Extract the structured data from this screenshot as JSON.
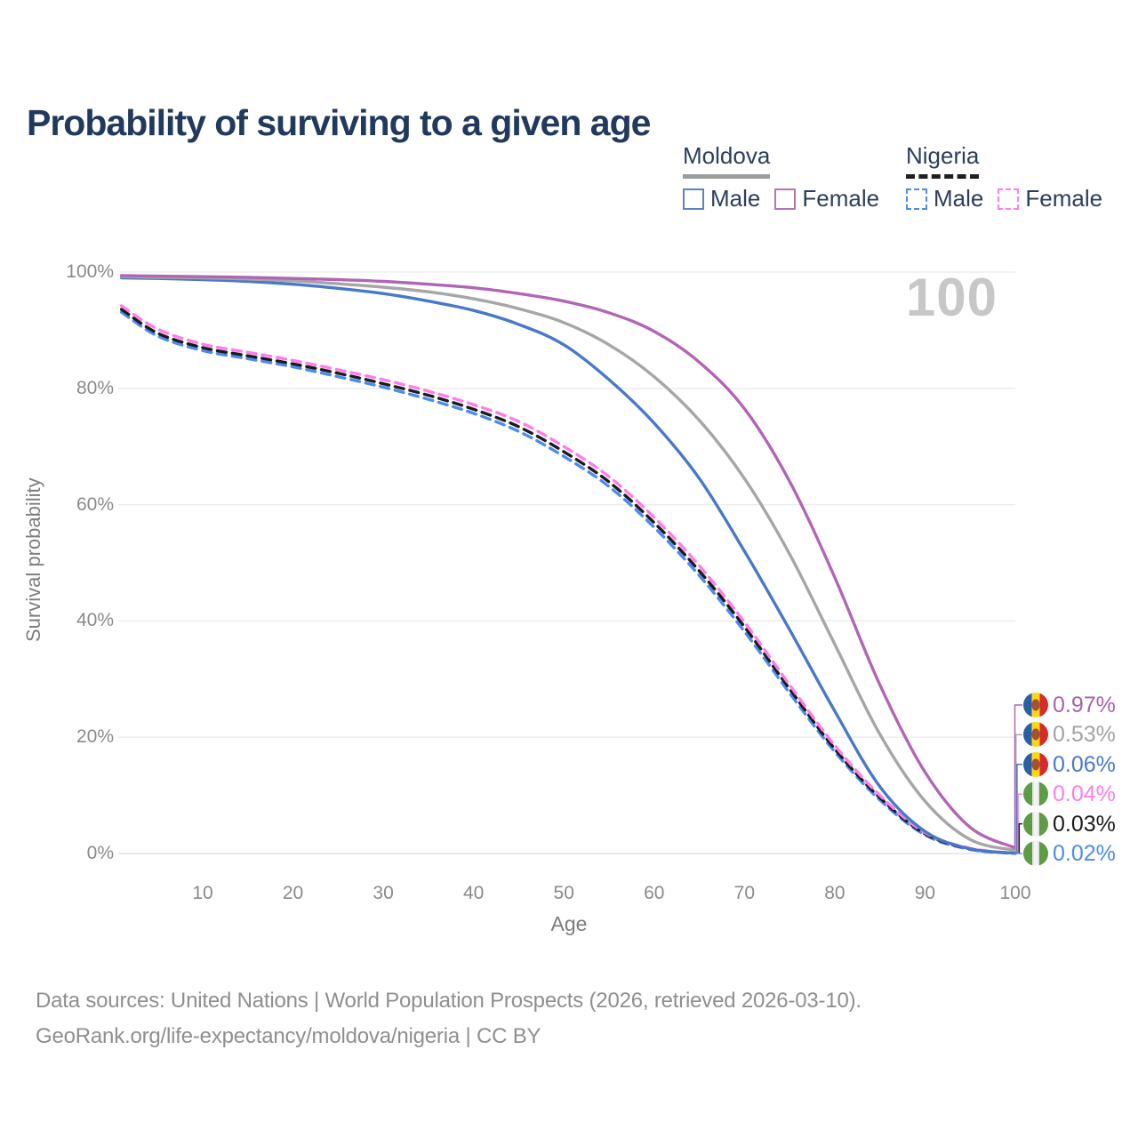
{
  "title": "Probability of surviving to a given age",
  "watermark": "100",
  "legend": {
    "groups": [
      {
        "country": "Moldova",
        "line_style": "solid",
        "underline_color": "#9c9c9c",
        "items": [
          {
            "label": "Male",
            "color": "#5b84bf",
            "style": "solid"
          },
          {
            "label": "Female",
            "color": "#b277ad",
            "style": "solid"
          }
        ]
      },
      {
        "country": "Nigeria",
        "line_style": "dashed",
        "underline_color": "#1f1f1f",
        "items": [
          {
            "label": "Male",
            "color": "#4b8bf5",
            "style": "dashed"
          },
          {
            "label": "Female",
            "color": "#ff7de9",
            "style": "dashed"
          }
        ]
      }
    ]
  },
  "flags": {
    "moldova": {
      "blue": "#2b5fa5",
      "yellow": "#ffd617",
      "red": "#d52b2b",
      "emblem": "#a3542e"
    },
    "nigeria": {
      "green": "#5d9c44",
      "white": "#f4f4f4",
      "shade": "#e4e4e4"
    }
  },
  "chart_data": {
    "type": "line",
    "title": "Probability of surviving to a given age",
    "xlabel": "Age",
    "ylabel": "Survival probability",
    "xlim": [
      1,
      100
    ],
    "ylim": [
      0,
      100
    ],
    "grid": true,
    "legend_position": "top-right",
    "x_ticks": [
      10,
      20,
      30,
      40,
      50,
      60,
      70,
      80,
      90,
      100
    ],
    "y_ticks": [
      {
        "value": 0,
        "label": "0%"
      },
      {
        "value": 20,
        "label": "20%"
      },
      {
        "value": 40,
        "label": "40%"
      },
      {
        "value": 60,
        "label": "60%"
      },
      {
        "value": 80,
        "label": "80%"
      },
      {
        "value": 100,
        "label": "100%"
      }
    ],
    "ages": [
      1,
      5,
      10,
      15,
      20,
      25,
      30,
      35,
      40,
      45,
      50,
      55,
      60,
      65,
      70,
      75,
      80,
      85,
      90,
      95,
      100
    ],
    "series": [
      {
        "name": "Moldova Female",
        "country": "Moldova",
        "sex": "Female",
        "flag": "moldova",
        "style": "solid",
        "color": "#b166b5",
        "label_color": "#a95fb0",
        "end_label": "0.97%",
        "values": [
          99.4,
          99.3,
          99.2,
          99.1,
          98.9,
          98.7,
          98.4,
          97.9,
          97.3,
          96.3,
          95.0,
          93.0,
          89.8,
          84.5,
          76.5,
          64.0,
          47.5,
          29.0,
          14.0,
          4.5,
          0.97
        ]
      },
      {
        "name": "Moldova Both sexes",
        "country": "Moldova",
        "sex": "Both sexes",
        "flag": "moldova",
        "style": "solid",
        "color": "#a6a6a6",
        "label_color": "#a3a3a3",
        "end_label": "0.53%",
        "values": [
          99.2,
          99.1,
          99.0,
          98.8,
          98.5,
          98.0,
          97.4,
          96.6,
          95.4,
          93.7,
          91.3,
          87.5,
          82.0,
          74.5,
          64.5,
          51.5,
          36.0,
          20.5,
          9.0,
          2.4,
          0.53
        ]
      },
      {
        "name": "Moldova Male",
        "country": "Moldova",
        "sex": "Male",
        "flag": "moldova",
        "style": "solid",
        "color": "#4878c8",
        "label_color": "#4878c8",
        "end_label": "0.06%",
        "values": [
          99.0,
          98.9,
          98.7,
          98.4,
          97.9,
          97.2,
          96.3,
          95.0,
          93.4,
          91.0,
          87.5,
          81.5,
          74.0,
          64.5,
          52.0,
          38.5,
          24.5,
          11.5,
          3.8,
          0.8,
          0.06
        ]
      },
      {
        "name": "Nigeria Female",
        "country": "Nigeria",
        "sex": "Female",
        "flag": "nigeria",
        "style": "dashed",
        "color": "#ff7de9",
        "label_color": "#ff7de9",
        "end_label": "0.04%",
        "values": [
          94.2,
          90.2,
          87.6,
          86.2,
          84.8,
          83.2,
          81.5,
          79.5,
          77.2,
          74.3,
          70.0,
          64.8,
          57.8,
          49.5,
          39.8,
          29.0,
          18.6,
          10.0,
          3.6,
          0.9,
          0.04
        ]
      },
      {
        "name": "Nigeria Both sexes",
        "country": "Nigeria",
        "sex": "Both sexes",
        "flag": "nigeria",
        "style": "dashed",
        "color": "#1c1c1c",
        "label_color": "#1a1a1a",
        "end_label": "0.03%",
        "values": [
          93.6,
          89.5,
          87.0,
          85.6,
          84.2,
          82.6,
          80.8,
          78.8,
          76.4,
          73.4,
          69.1,
          63.9,
          56.9,
          48.6,
          39.0,
          28.3,
          18.0,
          9.6,
          3.4,
          0.8,
          0.03
        ]
      },
      {
        "name": "Nigeria Male",
        "country": "Nigeria",
        "sex": "Male",
        "flag": "nigeria",
        "style": "dashed",
        "color": "#4b8bf5",
        "label_color": "#4b8bf5",
        "end_label": "0.02%",
        "values": [
          93.1,
          89.0,
          86.5,
          85.1,
          83.7,
          82.0,
          80.2,
          78.1,
          75.7,
          72.6,
          68.3,
          63.1,
          56.1,
          47.8,
          38.2,
          27.6,
          17.5,
          9.2,
          3.2,
          0.7,
          0.02
        ]
      }
    ]
  },
  "footer": {
    "line1": "Data sources: United Nations | World Population Prospects (2026, retrieved 2026-03-10).",
    "line2": "GeoRank.org/life-expectancy/moldova/nigeria | CC BY"
  }
}
